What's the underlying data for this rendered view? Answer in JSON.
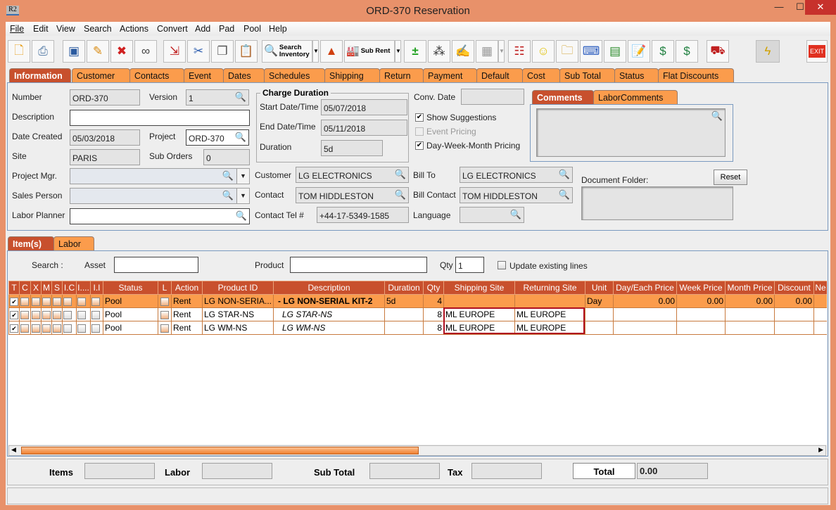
{
  "window": {
    "title": "ORD-370 Reservation",
    "app_icon": "R2",
    "minimize": "—",
    "maximize": "☐",
    "close": "✕"
  },
  "menu": [
    "File",
    "Edit",
    "View",
    "Search",
    "Actions",
    "Convert",
    "Add",
    "Pad",
    "Pool",
    "Help"
  ],
  "toolbar": {
    "search_inventory": "Search Inventory",
    "sub_rent": "Sub Rent",
    "exit": "EXIT"
  },
  "tabs": [
    "Information",
    "Customer",
    "Contacts",
    "Event",
    "Dates",
    "Schedules",
    "Shipping",
    "Return",
    "Payment",
    "Default",
    "Cost",
    "Sub Total",
    "Status",
    "Flat Discounts"
  ],
  "active_tab": "Information",
  "info": {
    "number_label": "Number",
    "number": "ORD-370",
    "version_label": "Version",
    "version": "1",
    "description_label": "Description",
    "description": "",
    "date_created_label": "Date Created",
    "date_created": "05/03/2018",
    "project_label": "Project",
    "project": "ORD-370",
    "site_label": "Site",
    "site": "PARIS",
    "sub_orders_label": "Sub Orders",
    "sub_orders": "0",
    "project_mgr_label": "Project Mgr.",
    "project_mgr": "",
    "sales_person_label": "Sales Person",
    "sales_person": "",
    "labor_planner_label": "Labor Planner",
    "labor_planner": "",
    "charge_duration_title": "Charge Duration",
    "start_label": "Start Date/Time",
    "start": "05/07/2018",
    "end_label": "End Date/Time",
    "end": "05/11/2018",
    "duration_label": "Duration",
    "duration": "5d",
    "conv_date_label": "Conv. Date",
    "conv_date": "",
    "show_suggestions": {
      "label": "Show Suggestions",
      "checked": true
    },
    "event_pricing": {
      "label": "Event Pricing",
      "checked": false,
      "disabled": true
    },
    "dwm_pricing": {
      "label": "Day-Week-Month Pricing",
      "checked": true
    },
    "comment_tabs": [
      "Comments",
      "LaborComments"
    ],
    "customer_label": "Customer",
    "customer": "LG ELECTRONICS",
    "contact_label": "Contact",
    "contact": "TOM HIDDLESTON",
    "contact_tel_label": "Contact Tel #",
    "contact_tel": "+44-17-5349-1585",
    "bill_to_label": "Bill To",
    "bill_to": "LG ELECTRONICS",
    "bill_contact_label": "Bill Contact",
    "bill_contact": "TOM HIDDLESTON",
    "language_label": "Language",
    "language": "",
    "document_folder_label": "Document Folder:",
    "reset_label": "Reset"
  },
  "lower_tabs": [
    "Item(s)",
    "Labor"
  ],
  "search_row": {
    "search_label": "Search :",
    "asset_label": "Asset",
    "asset": "",
    "product_label": "Product",
    "product": "",
    "qty_label": "Qty",
    "qty": "1",
    "update_label": "Update existing lines",
    "update_checked": false
  },
  "items_table": {
    "columns": [
      "T",
      "C",
      "X",
      "M",
      "S",
      "I.C",
      "I....",
      "I.I",
      "Status",
      "L",
      "Action",
      "Product ID",
      "Description",
      "Duration",
      "Qty",
      "Shipping Site",
      "Returning Site",
      "Unit",
      "Day/Each Price",
      "Week Price",
      "Month Price",
      "Discount",
      "Ne"
    ],
    "rows": [
      {
        "selected": true,
        "t": true,
        "status": "Pool",
        "action": "Rent",
        "product_id": "LG NON-SERIA...",
        "description": "-  LG NON-SERIAL KIT-2",
        "desc_style": "bold",
        "duration": "5d",
        "qty": "4",
        "shipping": "",
        "returning": "",
        "unit": "Day",
        "day_price": "0.00",
        "week_price": "0.00",
        "month_price": "0.00",
        "discount": "0.00"
      },
      {
        "selected": false,
        "t": true,
        "status": "Pool",
        "action": "Rent",
        "product_id": "LG STAR-NS",
        "description": "LG STAR-NS",
        "desc_style": "italic",
        "duration": "",
        "qty": "8",
        "shipping": "ML EUROPE",
        "returning": "ML EUROPE",
        "unit": "",
        "day_price": "",
        "week_price": "",
        "month_price": "",
        "discount": ""
      },
      {
        "selected": false,
        "t": true,
        "status": "Pool",
        "action": "Rent",
        "product_id": "LG WM-NS",
        "description": "LG WM-NS",
        "desc_style": "italic",
        "duration": "",
        "qty": "8",
        "shipping": "ML EUROPE",
        "returning": "ML EUROPE",
        "unit": "",
        "day_price": "",
        "week_price": "",
        "month_price": "",
        "discount": ""
      }
    ]
  },
  "footer": {
    "items_label": "Items",
    "items": "",
    "labor_label": "Labor",
    "labor": "",
    "subtotal_label": "Sub Total",
    "subtotal": "",
    "tax_label": "Tax",
    "tax": "",
    "total_label": "Total",
    "total": "0.00"
  },
  "colors": {
    "frame": "#e8916a",
    "tab": "#fb9c4c",
    "active_tab": "#c8502d",
    "header": "#c8502d",
    "selected_row": "#fb9c4c"
  }
}
